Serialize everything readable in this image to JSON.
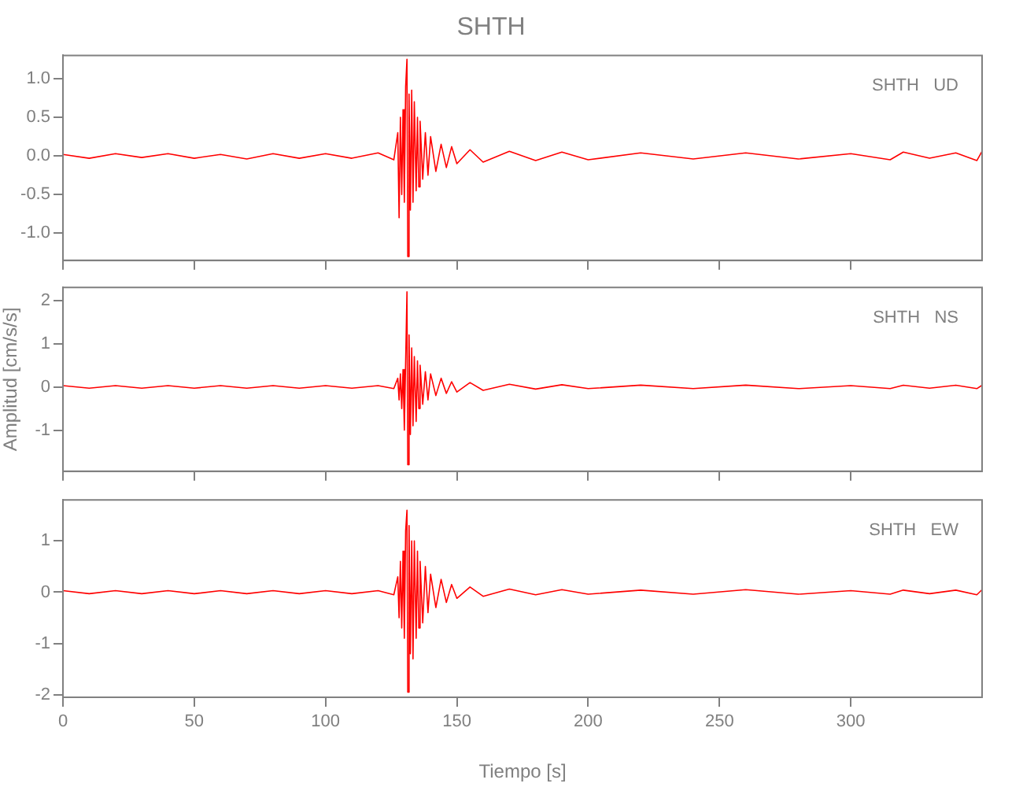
{
  "chart_data": [
    {
      "type": "line",
      "title": "SHTH",
      "annotations": [
        "SHTH   UD"
      ],
      "tick_labels": "y",
      "xlim": [
        0,
        350
      ],
      "xticks": [
        0,
        50,
        100,
        150,
        200,
        250,
        300
      ],
      "ylim": [
        -1.35,
        1.3
      ],
      "yticks": [
        {
          "value": -1,
          "label": "-1.0"
        },
        {
          "value": -0.5,
          "label": "-0.5"
        },
        {
          "value": 0,
          "label": "0.0"
        },
        {
          "value": 0.5,
          "label": "0.5"
        },
        {
          "value": 1,
          "label": "1.0"
        }
      ],
      "x": [
        0,
        10,
        20,
        30,
        40,
        50,
        60,
        70,
        80,
        90,
        100,
        110,
        120,
        126,
        127.5,
        128,
        128.5,
        129,
        129.5,
        130,
        130.5,
        131,
        131.3,
        131.8,
        132.3,
        132.8,
        133.3,
        133.8,
        134.5,
        135,
        135.5,
        136,
        137,
        138,
        139,
        140,
        142,
        144,
        146,
        148,
        150,
        155,
        160,
        170,
        180,
        190,
        200,
        220,
        240,
        260,
        280,
        300,
        315,
        320,
        330,
        340,
        348,
        350
      ],
      "series": [
        {
          "color": "#ff0000",
          "values": [
            0.02,
            -0.03,
            0.03,
            -0.02,
            0.03,
            -0.03,
            0.02,
            -0.04,
            0.03,
            -0.03,
            0.03,
            -0.03,
            0.04,
            -0.05,
            0.3,
            -0.8,
            0.5,
            -0.5,
            0.6,
            -0.6,
            0.9,
            1.25,
            -1.3,
            0.8,
            -0.7,
            0.85,
            -0.6,
            0.7,
            -0.45,
            0.5,
            -0.4,
            0.45,
            -0.3,
            0.3,
            -0.25,
            0.25,
            -0.2,
            0.15,
            -0.15,
            0.12,
            -0.1,
            0.08,
            -0.08,
            0.06,
            -0.06,
            0.05,
            -0.05,
            0.04,
            -0.04,
            0.04,
            -0.04,
            0.03,
            -0.05,
            0.05,
            -0.03,
            0.04,
            -0.06,
            0.06
          ]
        }
      ]
    },
    {
      "type": "line",
      "ylabel": "Amplitud [cm/s/s]",
      "annotations": [
        "SHTH   NS"
      ],
      "tick_labels": "y",
      "xlim": [
        0,
        350
      ],
      "xticks": [
        0,
        50,
        100,
        150,
        200,
        250,
        300
      ],
      "ylim": [
        -1.95,
        2.3
      ],
      "yticks": [
        -1,
        0,
        1,
        2
      ],
      "x": [
        0,
        10,
        20,
        30,
        40,
        50,
        60,
        70,
        80,
        90,
        100,
        110,
        120,
        126,
        127.5,
        128,
        128.5,
        129,
        129.5,
        130,
        130.5,
        131,
        131.3,
        131.8,
        132.3,
        132.8,
        133.3,
        133.8,
        134.5,
        135,
        135.5,
        136,
        137,
        138,
        139,
        140,
        142,
        144,
        146,
        148,
        150,
        155,
        160,
        170,
        180,
        190,
        200,
        220,
        240,
        260,
        280,
        300,
        315,
        320,
        330,
        340,
        348,
        350
      ],
      "series": [
        {
          "color": "#ff0000",
          "values": [
            0.03,
            -0.03,
            0.03,
            -0.03,
            0.03,
            -0.03,
            0.03,
            -0.03,
            0.03,
            -0.03,
            0.03,
            -0.03,
            0.03,
            -0.04,
            0.2,
            -0.3,
            0.3,
            -0.5,
            0.4,
            -1.0,
            0.6,
            2.2,
            -1.8,
            1.2,
            -1.1,
            0.9,
            -0.9,
            0.7,
            -0.8,
            0.6,
            -0.5,
            0.5,
            -0.4,
            0.35,
            -0.3,
            0.3,
            -0.2,
            0.2,
            -0.15,
            0.12,
            -0.12,
            0.1,
            -0.08,
            0.06,
            -0.05,
            0.05,
            -0.04,
            0.04,
            -0.04,
            0.04,
            -0.04,
            0.03,
            -0.04,
            0.04,
            -0.03,
            0.04,
            -0.04,
            0.04
          ]
        }
      ]
    },
    {
      "type": "line",
      "xlabel": "Tiempo [s]",
      "annotations": [
        "SHTH   EW"
      ],
      "xlim": [
        0,
        350
      ],
      "xticks": [
        0,
        50,
        100,
        150,
        200,
        250,
        300
      ],
      "ylim": [
        -2.05,
        1.8
      ],
      "yticks": [
        -2,
        -1,
        0,
        1
      ],
      "x": [
        0,
        10,
        20,
        30,
        40,
        50,
        60,
        70,
        80,
        90,
        100,
        110,
        120,
        126,
        127.5,
        128,
        128.5,
        129,
        129.5,
        130,
        130.5,
        131,
        131.3,
        131.8,
        132.3,
        132.8,
        133.3,
        133.8,
        134.5,
        135,
        135.5,
        136,
        137,
        138,
        139,
        140,
        142,
        144,
        146,
        148,
        150,
        155,
        160,
        170,
        180,
        190,
        200,
        220,
        240,
        260,
        280,
        300,
        315,
        320,
        330,
        340,
        348,
        350
      ],
      "series": [
        {
          "color": "#ff0000",
          "values": [
            0.03,
            -0.03,
            0.03,
            -0.03,
            0.03,
            -0.03,
            0.03,
            -0.03,
            0.03,
            -0.03,
            0.03,
            -0.03,
            0.03,
            -0.05,
            0.3,
            -0.5,
            0.6,
            -0.7,
            0.8,
            -0.9,
            1.2,
            1.6,
            -1.95,
            1.3,
            -1.2,
            1.0,
            -1.3,
            1.0,
            -0.9,
            0.8,
            -0.7,
            0.6,
            -0.6,
            0.5,
            -0.4,
            0.35,
            -0.3,
            0.25,
            -0.2,
            0.15,
            -0.12,
            0.1,
            -0.08,
            0.06,
            -0.05,
            0.05,
            -0.04,
            0.04,
            -0.04,
            0.05,
            -0.04,
            0.03,
            -0.04,
            0.04,
            -0.03,
            0.04,
            -0.05,
            0.05
          ]
        }
      ]
    }
  ]
}
